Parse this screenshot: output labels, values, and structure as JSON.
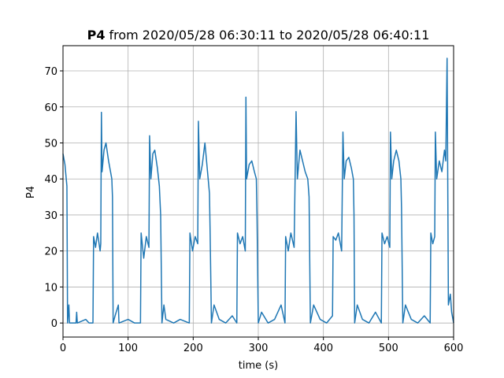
{
  "chart_data": {
    "type": "line",
    "title_bold": "P4",
    "title": "from 2020/05/28 06:30:11 to 2020/05/28 06:40:11",
    "xlabel": "time (s)",
    "ylabel": "P4",
    "color": "#1f77b4",
    "xlim": [
      0,
      600
    ],
    "ylim": [
      -3.9,
      77.0
    ],
    "xticks": [
      0,
      100,
      200,
      300,
      400,
      500,
      600
    ],
    "yticks": [
      0,
      10,
      20,
      30,
      40,
      50,
      60,
      70
    ],
    "grid": true,
    "x": [
      0,
      3,
      6,
      7,
      9,
      10,
      20,
      21,
      22,
      35,
      40,
      46,
      47,
      50,
      53,
      57,
      58,
      59,
      60,
      63,
      66,
      70,
      73,
      75,
      76,
      77,
      80,
      85,
      86,
      100,
      110,
      119,
      120,
      124,
      128,
      132,
      133,
      135,
      138,
      141,
      145,
      148,
      150,
      152,
      155,
      158,
      170,
      180,
      194,
      195,
      199,
      203,
      207,
      208,
      210,
      214,
      218,
      222,
      225,
      226,
      228,
      232,
      240,
      250,
      260,
      267,
      268,
      272,
      276,
      280,
      281,
      282,
      286,
      290,
      294,
      297,
      298,
      300,
      305,
      315,
      325,
      335,
      341,
      342,
      346,
      350,
      355,
      358,
      360,
      364,
      368,
      372,
      376,
      378,
      380,
      385,
      395,
      405,
      414,
      415,
      419,
      423,
      428,
      430,
      432,
      435,
      439,
      443,
      446,
      447,
      448,
      452,
      460,
      470,
      480,
      489,
      490,
      494,
      498,
      502,
      503,
      505,
      508,
      512,
      516,
      519,
      520,
      522,
      526,
      535,
      545,
      555,
      564,
      565,
      568,
      571,
      572,
      574,
      578,
      582,
      586,
      588,
      590,
      591,
      592,
      595,
      597,
      600
    ],
    "values": [
      47,
      44,
      38,
      0,
      5,
      0,
      0,
      3,
      0,
      1,
      0,
      0,
      24,
      21,
      25,
      20,
      22,
      58.5,
      42,
      48,
      50,
      45,
      42,
      40,
      35,
      0,
      2,
      5,
      0,
      1,
      0,
      0,
      25,
      18,
      24,
      21,
      52,
      40,
      47,
      48,
      43,
      38,
      30,
      0,
      5,
      1,
      0,
      1,
      0,
      25,
      20,
      24,
      22,
      56,
      40,
      44,
      50,
      42,
      36,
      25,
      0,
      5,
      1,
      0,
      2,
      0,
      25,
      22,
      24,
      20,
      62.7,
      40,
      44,
      45,
      42,
      40,
      30,
      0,
      3,
      0,
      1,
      5,
      0,
      24,
      20,
      25,
      21,
      58.7,
      40,
      48,
      45,
      42,
      40,
      35,
      0,
      5,
      1,
      0,
      2,
      24,
      23,
      25,
      20,
      53,
      40,
      45,
      46,
      43,
      40,
      30,
      0,
      5,
      1,
      0,
      3,
      0,
      25,
      22,
      24,
      21,
      53,
      40,
      45,
      48,
      45,
      40,
      32,
      0,
      5,
      1,
      0,
      2,
      0,
      25,
      22,
      24,
      53,
      40,
      45,
      42,
      48,
      45,
      73.5,
      40,
      5,
      8,
      3,
      0
    ]
  }
}
